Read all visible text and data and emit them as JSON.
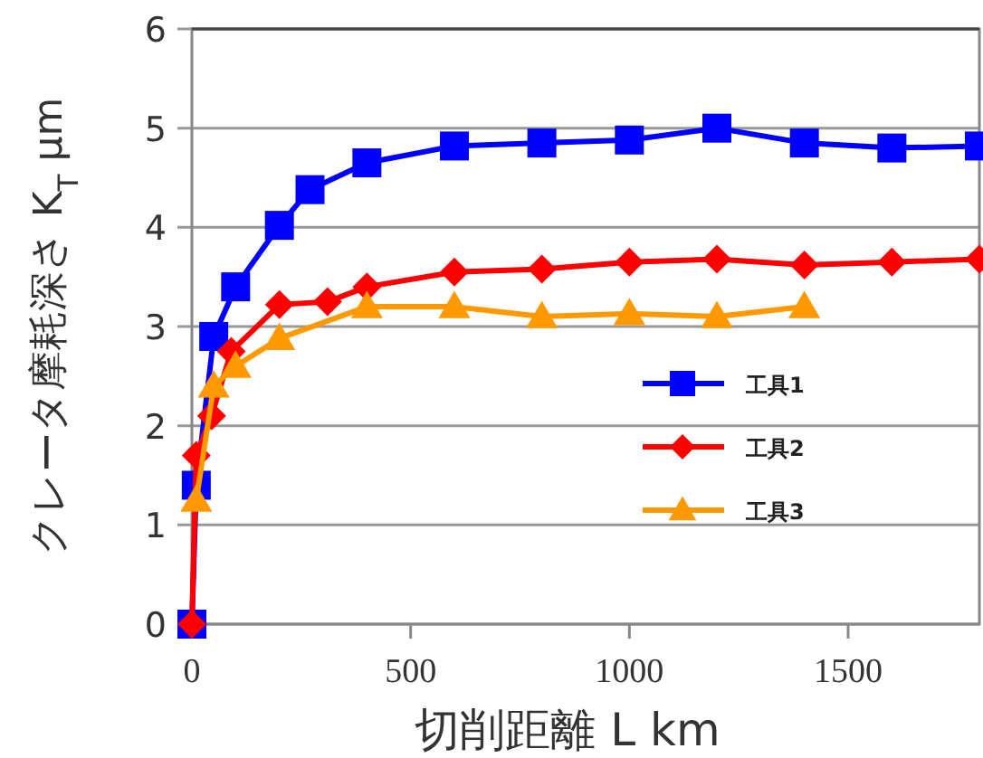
{
  "chart_data": {
    "type": "line",
    "xlabel": "切削距離 L km",
    "ylabel": "クレータ摩耗深さ K$_{T}$ μm",
    "xlim": [
      0,
      1800
    ],
    "ylim": [
      0,
      6
    ],
    "xticks": [
      0,
      500,
      1000,
      1500
    ],
    "yticks": [
      0,
      1,
      2,
      3,
      4,
      5,
      6
    ],
    "grid": "y",
    "legend": "right",
    "series": [
      {
        "name": "工具1",
        "color": "#0000ff",
        "marker": "square",
        "x": [
          0,
          10,
          50,
          100,
          200,
          270,
          400,
          600,
          800,
          1000,
          1200,
          1400,
          1600,
          1800
        ],
        "values": [
          0,
          1.4,
          2.9,
          3.4,
          4.02,
          4.38,
          4.65,
          4.82,
          4.85,
          4.88,
          5.0,
          4.85,
          4.8,
          4.82
        ]
      },
      {
        "name": "工具2",
        "color": "#ff0000",
        "marker": "diamond",
        "x": [
          0,
          10,
          45,
          90,
          200,
          310,
          400,
          600,
          800,
          1000,
          1200,
          1400,
          1600,
          1800
        ],
        "values": [
          0,
          1.7,
          2.1,
          2.75,
          3.22,
          3.25,
          3.4,
          3.55,
          3.58,
          3.65,
          3.68,
          3.62,
          3.65,
          3.68
        ]
      },
      {
        "name": "工具3",
        "color": "#ff9900",
        "marker": "triangle",
        "x": [
          10,
          50,
          100,
          200,
          400,
          600,
          800,
          1000,
          1200,
          1400
        ],
        "values": [
          1.25,
          2.4,
          2.6,
          2.88,
          3.2,
          3.2,
          3.1,
          3.13,
          3.1,
          3.2
        ]
      }
    ]
  }
}
